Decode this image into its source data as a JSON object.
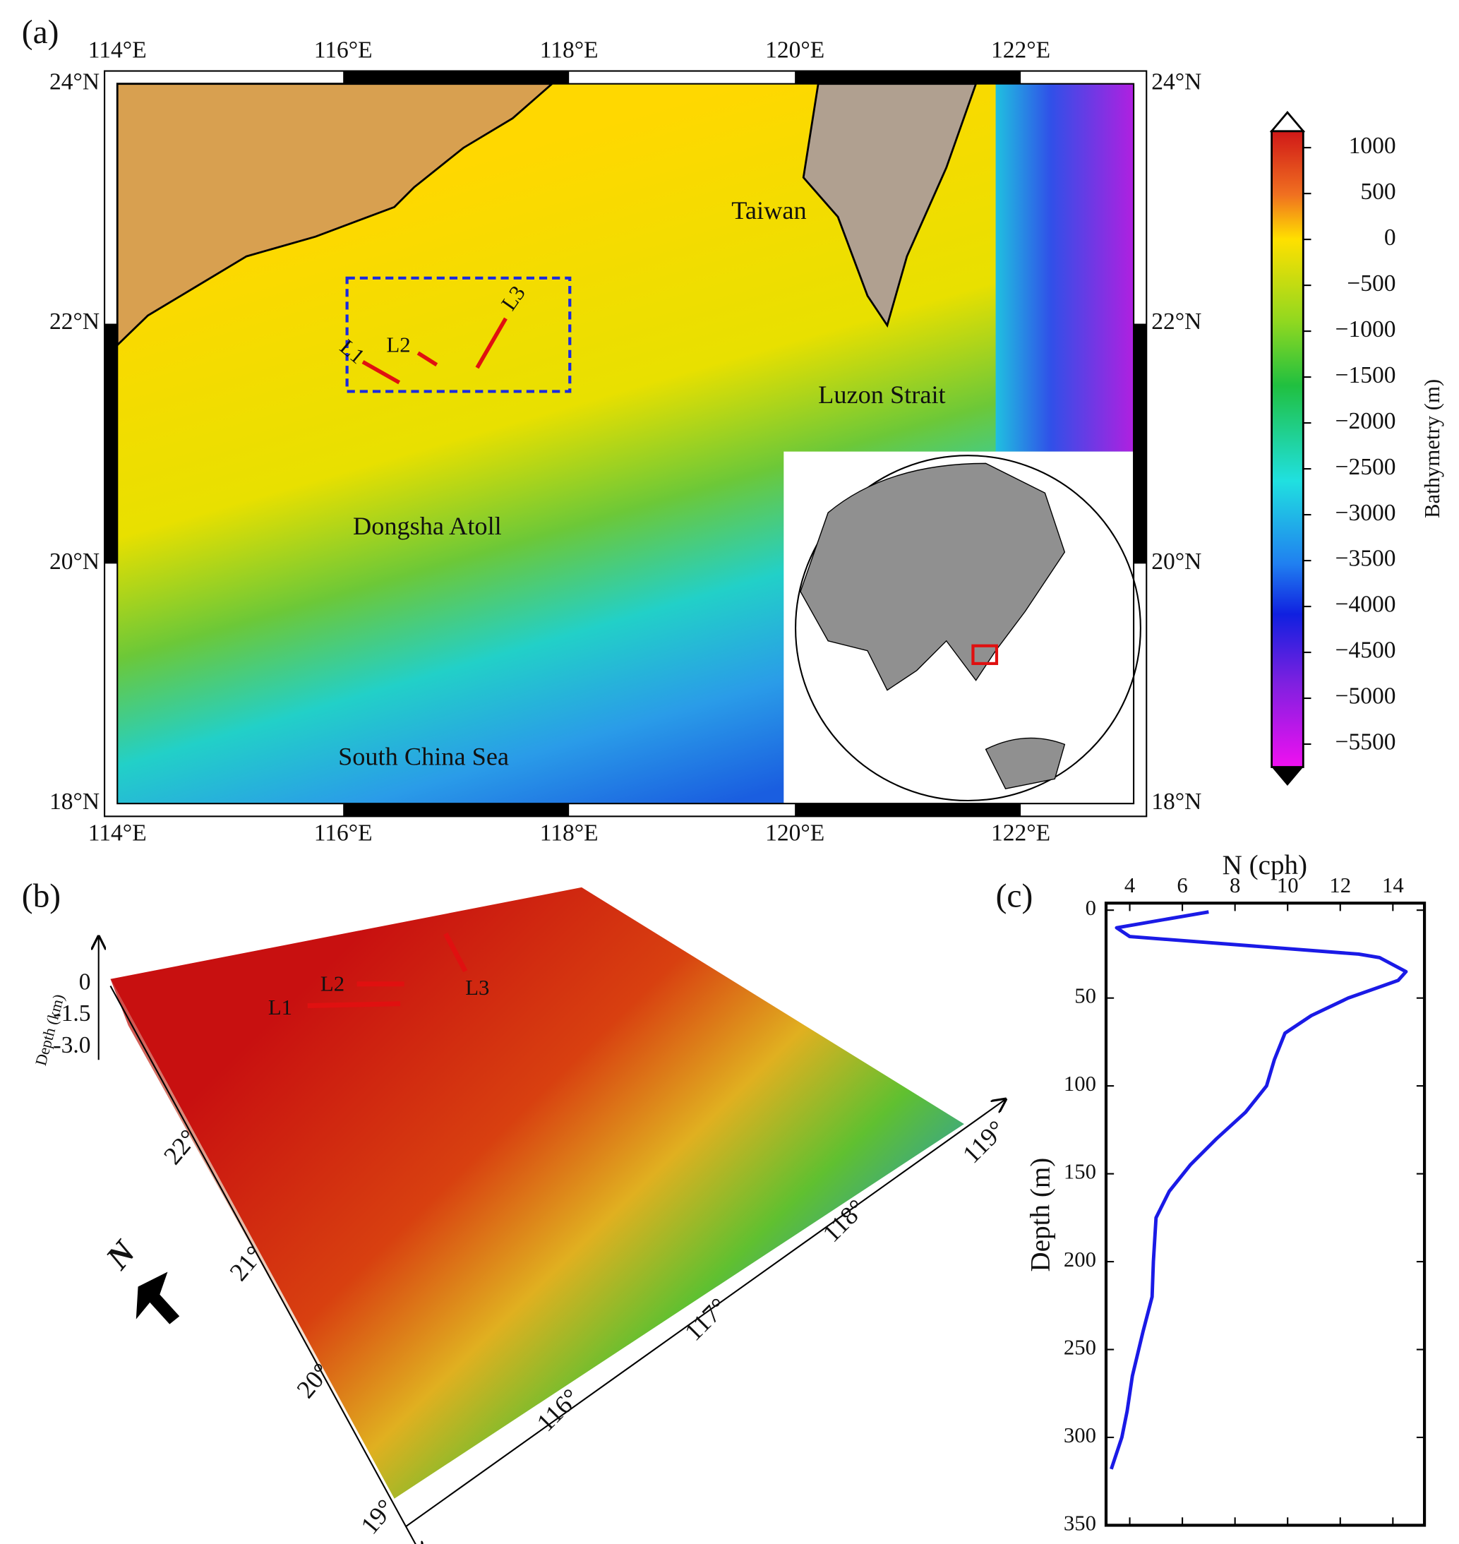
{
  "map": {
    "label": "(a)",
    "xlim": [
      114,
      123
    ],
    "ylim": [
      18,
      24
    ],
    "xticks": [
      {
        "value": 114,
        "label": "114°E"
      },
      {
        "value": 116,
        "label": "116°E"
      },
      {
        "value": 118,
        "label": "118°E"
      },
      {
        "value": 120,
        "label": "120°E"
      },
      {
        "value": 122,
        "label": "122°E"
      }
    ],
    "yticks": [
      {
        "value": 18,
        "label": "18°N"
      },
      {
        "value": 20,
        "label": "20°N"
      },
      {
        "value": 22,
        "label": "22°N"
      },
      {
        "value": 24,
        "label": "24°N"
      }
    ],
    "places": [
      "Taiwan",
      "Luzon Strait",
      "Dongsha Atoll",
      "South China Sea"
    ],
    "lines": [
      "L1",
      "L2",
      "L3"
    ],
    "colorbar": {
      "title": "Bathymetry (m)",
      "clim": [
        -5750,
        1180
      ],
      "ticks": [
        1000,
        500,
        0,
        {
          "value": -500,
          "label": "−500"
        },
        {
          "value": -1000,
          "label": "−1000"
        },
        {
          "value": -1500,
          "label": "−1500"
        },
        {
          "value": -2000,
          "label": "−2000"
        },
        {
          "value": -2500,
          "label": "−2500"
        },
        {
          "value": -3000,
          "label": "−3000"
        },
        {
          "value": -3500,
          "label": "−3500"
        },
        {
          "value": -4000,
          "label": "−4000"
        },
        {
          "value": -4500,
          "label": "−4500"
        },
        {
          "value": -5000,
          "label": "−5000"
        },
        {
          "value": -5500,
          "label": "−5500"
        }
      ]
    }
  },
  "relief": {
    "label": "(b)",
    "depth_label": "Depth (km)",
    "depth_ticks": [
      "0",
      "-1.5",
      "-3.0"
    ],
    "lat_ticks": [
      "22°",
      "21°",
      "20°",
      "19°"
    ],
    "lon_ticks": [
      "116°",
      "117°",
      "118°",
      "119°"
    ],
    "north": "N",
    "lines": [
      "L1",
      "L2",
      "L3"
    ]
  },
  "chart_data": {
    "type": "line",
    "label": "(c)",
    "x_label": "N (cph)",
    "y_label": "Depth (m)",
    "xlim": [
      3.1,
      15.2
    ],
    "ylim": [
      -4,
      350
    ],
    "y_inverted": true,
    "xticks": [
      4,
      6,
      8,
      10,
      12,
      14
    ],
    "yticks": [
      0,
      50,
      100,
      150,
      200,
      250,
      300,
      350
    ],
    "x": [
      7.0,
      3.5,
      4.0,
      12.7,
      13.5,
      14.5,
      14.2,
      12.3,
      10.9,
      9.9,
      9.5,
      9.2,
      8.4,
      7.3,
      6.3,
      5.5,
      5.0,
      4.9,
      4.85,
      4.5,
      4.1,
      3.9,
      3.7,
      3.3
    ],
    "values": [
      1,
      10,
      15,
      25,
      27,
      35,
      40,
      50,
      60,
      70,
      85,
      100,
      115,
      130,
      145,
      160,
      175,
      200,
      220,
      240,
      265,
      285,
      300,
      318
    ],
    "color": "#1a1ae6"
  }
}
